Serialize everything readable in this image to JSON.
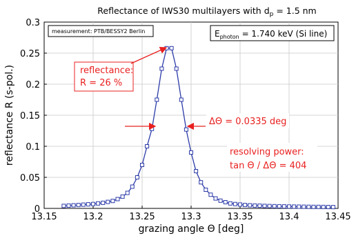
{
  "chart_data": {
    "type": "line",
    "title": "Reflectance of IWS30 multilayers with d",
    "title_sub": "p",
    "title_tail": " = 1.5 nm",
    "xlabel": "grazing angle Θ [deg]",
    "ylabel": "reflectance R (s-pol.)",
    "xlim": [
      13.15,
      13.45
    ],
    "ylim": [
      0,
      0.3
    ],
    "x_ticks": [
      "13.15",
      "13.2",
      "13.25",
      "13.3",
      "13.35",
      "13.4",
      "13.45"
    ],
    "y_ticks": [
      "0",
      "0.05",
      "0.1",
      "0.15",
      "0.2",
      "0.25",
      "0.3"
    ],
    "grid": true,
    "line_color": "#2b3aa8",
    "annotation_color": "#e8201f",
    "series": [
      {
        "x": [
          13.17,
          13.175,
          13.18,
          13.185,
          13.19,
          13.195,
          13.2,
          13.205,
          13.21,
          13.215,
          13.22,
          13.225,
          13.23,
          13.235,
          13.24,
          13.245,
          13.25,
          13.255,
          13.26,
          13.265,
          13.27,
          13.275,
          13.28,
          13.285,
          13.29,
          13.295,
          13.3,
          13.305,
          13.31,
          13.315,
          13.32,
          13.325,
          13.33,
          13.335,
          13.34,
          13.345,
          13.35,
          13.355,
          13.36,
          13.365,
          13.37,
          13.375,
          13.38,
          13.385,
          13.39,
          13.395,
          13.4,
          13.405,
          13.41,
          13.415,
          13.42,
          13.425,
          13.43,
          13.435,
          13.44,
          13.445
        ],
        "y": [
          0.004,
          0.0045,
          0.005,
          0.0055,
          0.006,
          0.0065,
          0.007,
          0.008,
          0.009,
          0.0105,
          0.012,
          0.015,
          0.019,
          0.025,
          0.035,
          0.05,
          0.07,
          0.1,
          0.128,
          0.175,
          0.225,
          0.258,
          0.258,
          0.225,
          0.175,
          0.127,
          0.09,
          0.06,
          0.042,
          0.03,
          0.022,
          0.016,
          0.0125,
          0.01,
          0.008,
          0.007,
          0.0062,
          0.0055,
          0.005,
          0.0046,
          0.0043,
          0.004,
          0.0038,
          0.0036,
          0.0034,
          0.0032,
          0.003,
          0.0029,
          0.0028,
          0.0027,
          0.0026,
          0.0025,
          0.0024,
          0.0023,
          0.0022,
          0.0021
        ]
      }
    ],
    "annotations": {
      "measurement": "measurement: PTB/BESSY2 Berlin",
      "energy_pre": "E",
      "energy_sub": "photon",
      "energy_post": " = 1.740 keV (Si line)",
      "reflectance_line1": "reflectance:",
      "reflectance_line2": "R = 26 %",
      "fwhm": "ΔΘ = 0.0335 deg",
      "resolving_line1": "resolving power:",
      "resolving_line2": "tan Θ / ΔΘ = 404"
    }
  }
}
